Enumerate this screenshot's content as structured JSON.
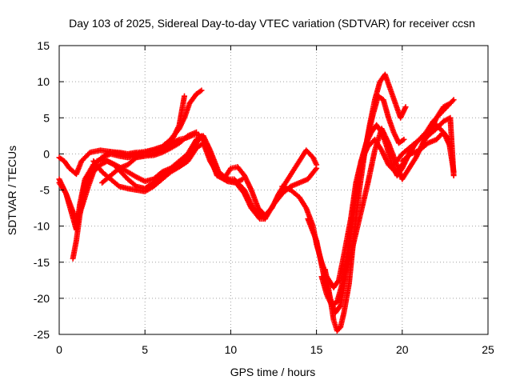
{
  "chart_data": {
    "type": "scatter",
    "title": "Day 103 of 2025, Sidereal Day-to-day VTEC variation (SDTVAR) for receiver ccsn",
    "xlabel": "GPS time / hours",
    "ylabel": "SDTVAR / TECUs",
    "xlim": [
      0,
      25
    ],
    "ylim": [
      -25,
      15
    ],
    "xticks": [
      0,
      5,
      10,
      15,
      20,
      25
    ],
    "yticks": [
      -25,
      -20,
      -15,
      -10,
      -5,
      0,
      5,
      10,
      15
    ],
    "grid": true,
    "marker": "+",
    "color": "#ff0000",
    "series": [
      {
        "x": [
          0.0,
          0.3,
          0.6,
          1.0,
          1.3,
          1.8,
          2.4,
          3.0,
          3.6,
          4.0,
          4.5,
          5.0,
          5.5,
          6.0,
          6.6,
          7.0,
          7.4,
          7.8,
          8.1,
          8.4,
          8.8,
          9.2,
          9.6,
          10.0,
          10.4,
          10.8,
          11.2,
          11.6,
          12.0,
          12.4,
          12.8,
          13.2,
          13.6,
          14.0,
          14.4,
          14.8,
          15.0
        ],
        "y": [
          -0.5,
          -1.0,
          -2.0,
          -2.8,
          -1.0,
          0.2,
          0.5,
          0.3,
          0.0,
          -0.2,
          0.0,
          0.2,
          0.5,
          0.8,
          1.5,
          2.0,
          2.2,
          2.6,
          2.7,
          2.0,
          -0.5,
          -3.0,
          -3.5,
          -2.0,
          -1.8,
          -3.0,
          -5.0,
          -7.5,
          -8.5,
          -7.5,
          -5.5,
          -4.0,
          -2.5,
          -1.0,
          0.5,
          -0.5,
          -1.5
        ]
      },
      {
        "x": [
          0.0,
          0.4,
          0.8,
          1.0,
          1.2,
          1.5,
          2.0,
          2.5,
          3.0,
          3.5,
          4.0,
          4.5,
          5.0,
          5.5,
          6.0,
          6.5,
          7.0,
          7.3,
          7.6,
          8.0,
          8.3
        ],
        "y": [
          -3.5,
          -5.5,
          -8.0,
          -9.0,
          -8.0,
          -4.0,
          -1.5,
          -0.5,
          0.3,
          0.2,
          0.0,
          0.2,
          0.3,
          0.6,
          1.0,
          2.0,
          3.5,
          5.0,
          7.0,
          8.3,
          8.8
        ]
      },
      {
        "x": [
          0.0,
          0.4,
          0.7,
          1.0,
          1.2,
          1.5,
          2.0,
          2.5,
          3.0,
          3.5,
          4.0,
          4.5,
          5.0,
          5.5,
          6.0,
          6.5,
          7.0,
          7.3
        ],
        "y": [
          -4.0,
          -5.5,
          -8.0,
          -10.5,
          -7.0,
          -3.5,
          -1.5,
          -0.5,
          0.0,
          -0.3,
          -0.5,
          -0.3,
          -0.2,
          0.0,
          0.5,
          1.5,
          4.0,
          8.0
        ]
      },
      {
        "x": [
          0.8,
          1.0,
          1.2,
          1.5,
          1.8,
          2.2,
          2.6,
          3.0,
          3.5,
          4.0,
          4.5,
          5.0,
          5.5,
          6.0,
          6.5,
          7.0,
          7.5,
          8.0,
          8.3,
          8.7,
          9.2,
          9.7,
          10.2,
          10.8,
          11.3,
          11.8,
          12.0
        ],
        "y": [
          -14.5,
          -12.0,
          -8.5,
          -5.0,
          -2.5,
          -1.0,
          -0.8,
          -1.2,
          -1.8,
          -2.5,
          -3.2,
          -3.8,
          -3.5,
          -2.5,
          -2.0,
          -1.5,
          -0.5,
          1.5,
          2.5,
          0.5,
          -2.5,
          -3.5,
          -3.5,
          -5.0,
          -7.5,
          -8.5,
          -9.0
        ]
      },
      {
        "x": [
          1.3,
          1.7,
          2.0,
          2.4,
          2.8,
          3.2,
          3.6,
          4.0,
          4.5,
          5.0,
          5.5,
          6.0,
          6.5,
          7.0,
          7.5,
          8.0,
          8.4,
          8.8,
          9.3,
          9.8,
          10.3,
          10.8,
          11.2,
          11.7,
          12.0,
          12.5,
          13.0,
          13.5,
          14.0,
          14.5,
          15.0
        ],
        "y": [
          -7.5,
          -4.5,
          -2.5,
          -1.5,
          -1.0,
          -1.5,
          -2.5,
          -3.5,
          -4.5,
          -4.8,
          -4.0,
          -3.0,
          -2.0,
          -1.0,
          0.0,
          2.0,
          2.5,
          0.5,
          -2.5,
          -3.5,
          -4.0,
          -5.5,
          -7.5,
          -9.0,
          -9.0,
          -7.0,
          -5.5,
          -4.5,
          -4.0,
          -3.5,
          -2.0
        ]
      },
      {
        "x": [
          2.0,
          2.5,
          3.0,
          3.5,
          4.0,
          4.5,
          5.0,
          5.5,
          6.0,
          6.5,
          7.0,
          7.5,
          8.0,
          8.4,
          8.8,
          9.3,
          9.8,
          10.3,
          10.7
        ],
        "y": [
          -1.0,
          -2.5,
          -3.5,
          -4.5,
          -4.8,
          -5.0,
          -5.2,
          -4.5,
          -3.5,
          -2.5,
          -1.8,
          -1.0,
          0.8,
          1.5,
          -1.0,
          -3.0,
          -3.8,
          -4.0,
          -3.5
        ]
      },
      {
        "x": [
          2.5,
          3.0,
          3.5,
          4.0,
          4.5,
          5.0,
          5.5,
          6.0,
          6.5,
          7.0,
          7.5,
          8.0
        ],
        "y": [
          -4.0,
          -3.0,
          -2.0,
          -1.5,
          -0.5,
          -0.3,
          -0.2,
          0.2,
          0.8,
          1.5,
          2.5,
          3.0
        ]
      },
      {
        "x": [
          13.0,
          13.5,
          14.0,
          14.4,
          14.8,
          15.0,
          15.3,
          15.6,
          16.0,
          16.3,
          16.6,
          17.0,
          17.3,
          17.6,
          18.0,
          18.4,
          18.8,
          19.2,
          19.6,
          20.0,
          20.4,
          20.8,
          21.2,
          21.6,
          22.0,
          22.4,
          22.8
        ],
        "y": [
          -4.5,
          -5.0,
          -6.0,
          -7.5,
          -10.0,
          -12.5,
          -15.0,
          -17.0,
          -18.5,
          -17.5,
          -14.0,
          -9.0,
          -4.0,
          -1.0,
          1.0,
          2.0,
          0.5,
          -1.5,
          -2.5,
          -1.5,
          0.0,
          1.5,
          2.5,
          3.5,
          4.0,
          3.0,
          1.0
        ]
      },
      {
        "x": [
          14.5,
          15.0,
          15.4,
          15.8,
          16.1,
          16.4,
          16.7,
          17.0,
          17.3,
          17.6,
          18.0,
          18.3,
          18.6,
          18.9,
          19.2,
          19.5,
          19.8,
          20.1
        ],
        "y": [
          -9.0,
          -12.0,
          -16.5,
          -20.0,
          -22.0,
          -21.0,
          -17.0,
          -11.0,
          -6.0,
          -2.0,
          2.5,
          5.5,
          8.0,
          7.5,
          5.0,
          3.0,
          1.5,
          2.0
        ]
      },
      {
        "x": [
          15.5,
          15.8,
          16.0,
          16.2,
          16.4,
          16.6,
          16.9,
          17.2,
          17.5,
          17.8,
          18.1,
          18.4,
          18.7,
          19.0,
          19.3,
          19.6,
          19.9,
          20.2
        ],
        "y": [
          -16.0,
          -20.0,
          -23.0,
          -24.5,
          -24.0,
          -22.0,
          -18.0,
          -11.0,
          -5.0,
          0.0,
          4.0,
          7.5,
          10.0,
          11.0,
          9.0,
          7.0,
          5.0,
          6.5
        ]
      },
      {
        "x": [
          15.3,
          15.6,
          15.9,
          16.2,
          16.5,
          16.8,
          17.0,
          17.3,
          17.6,
          17.9,
          18.2,
          18.5,
          18.8,
          19.1,
          19.4,
          19.7,
          20.0,
          20.3,
          20.6,
          21.0,
          21.4,
          21.8,
          22.2,
          22.6,
          23.0
        ],
        "y": [
          -17.0,
          -19.5,
          -21.0,
          -20.5,
          -18.0,
          -14.0,
          -10.0,
          -5.0,
          -1.0,
          1.5,
          3.0,
          4.0,
          3.0,
          1.0,
          -1.5,
          -3.0,
          -2.0,
          -0.5,
          1.0,
          2.0,
          3.0,
          4.5,
          5.5,
          6.5,
          7.5
        ]
      },
      {
        "x": [
          16.5,
          17.0,
          17.5,
          18.0,
          18.4,
          18.8,
          19.2,
          19.6,
          20.0,
          20.4,
          20.8,
          21.2,
          21.6,
          22.0,
          22.4,
          22.8
        ],
        "y": [
          -18.0,
          -14.0,
          -9.0,
          -4.0,
          0.5,
          3.5,
          1.5,
          -1.0,
          -3.5,
          -2.0,
          -0.5,
          1.5,
          3.0,
          5.0,
          6.5,
          7.0
        ]
      },
      {
        "x": [
          19.5,
          20.0,
          20.5,
          21.0,
          21.5,
          22.0,
          22.4,
          22.8,
          23.0
        ],
        "y": [
          -1.5,
          0.0,
          1.0,
          2.0,
          2.5,
          3.5,
          4.5,
          5.0,
          -3.0
        ]
      },
      {
        "x": [
          20.0,
          20.5,
          21.0,
          21.5,
          22.0,
          22.4,
          22.7,
          23.0
        ],
        "y": [
          -1.0,
          0.0,
          0.5,
          1.5,
          2.0,
          3.0,
          2.0,
          -2.5
        ]
      }
    ]
  }
}
